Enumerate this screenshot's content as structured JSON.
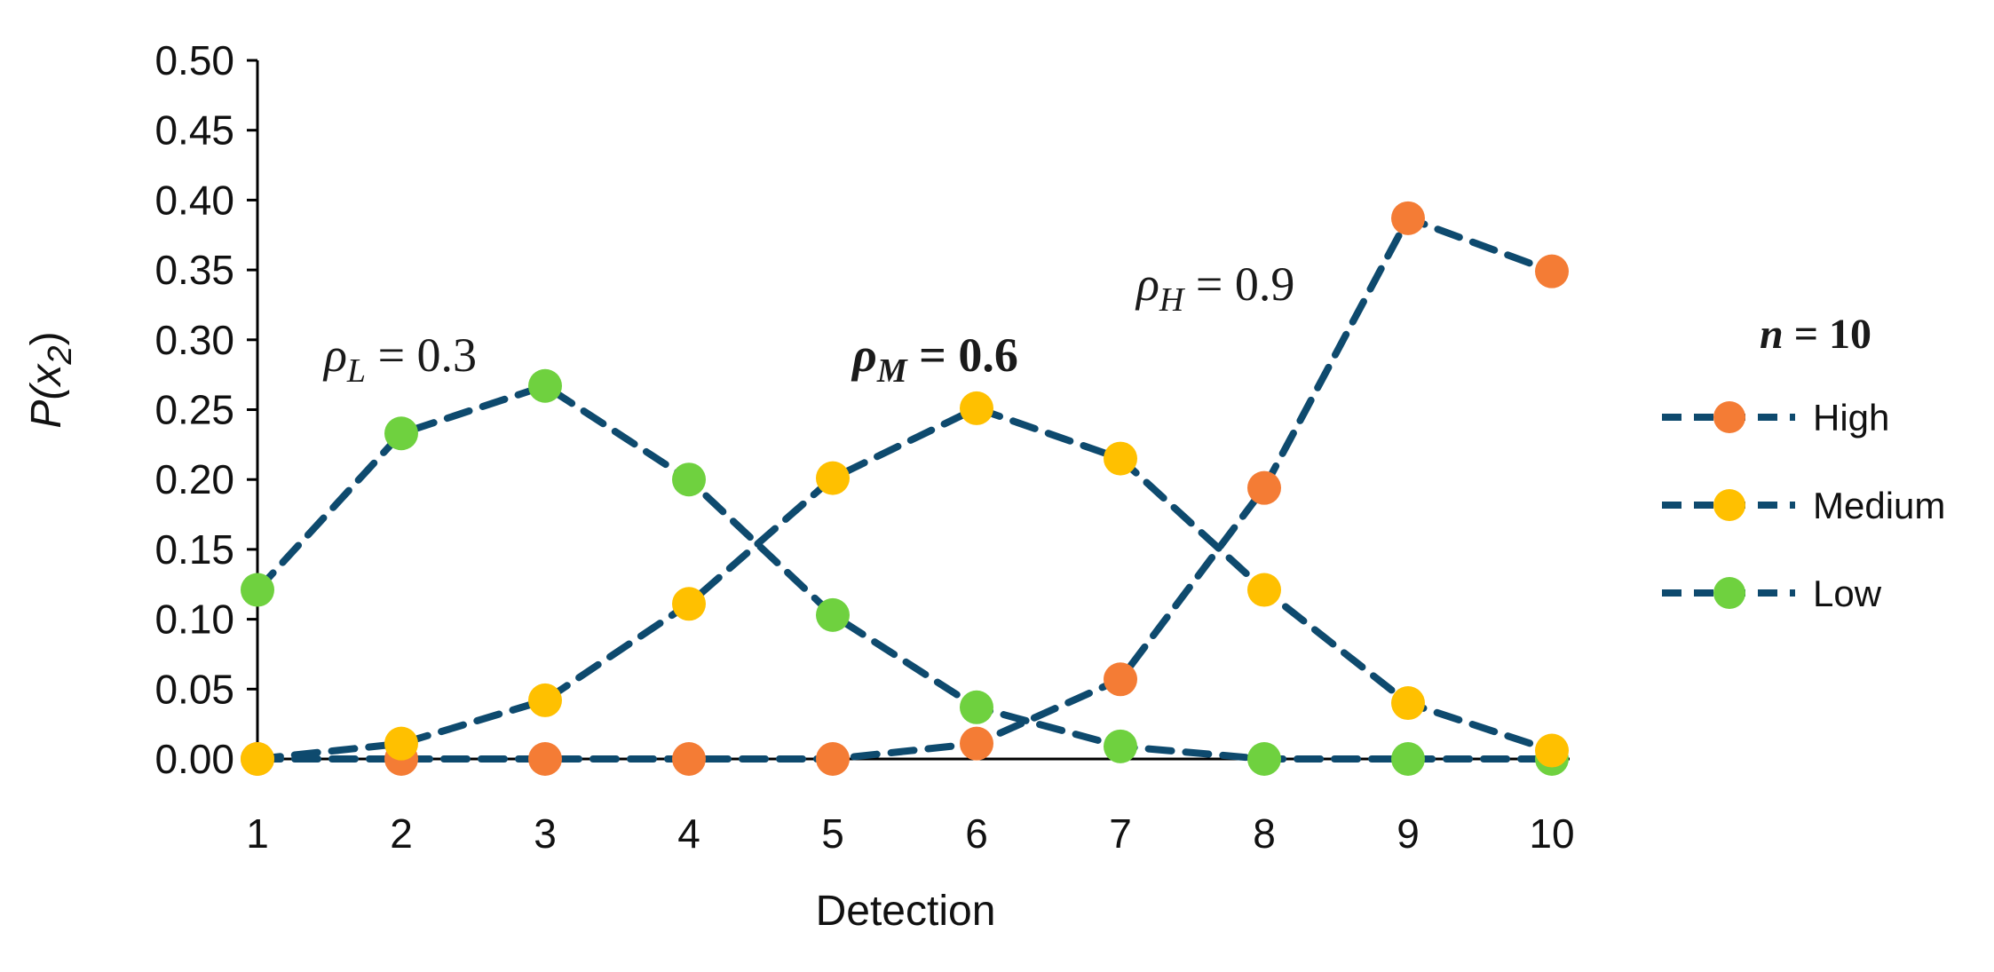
{
  "chart_data": {
    "type": "line",
    "xlabel": "Detection",
    "ylabel": "P(x2)",
    "ylabel_parts": {
      "main": "P(x",
      "sub": "2",
      "close": ")"
    },
    "x": [
      1,
      2,
      3,
      4,
      5,
      6,
      7,
      8,
      9,
      10
    ],
    "x_ticks": [
      "1",
      "2",
      "3",
      "4",
      "5",
      "6",
      "7",
      "8",
      "9",
      "10"
    ],
    "ylim": [
      0,
      0.5
    ],
    "y_ticks": [
      "0.00",
      "0.05",
      "0.10",
      "0.15",
      "0.20",
      "0.25",
      "0.30",
      "0.35",
      "0.40",
      "0.45",
      "0.50"
    ],
    "grid": false,
    "legend": {
      "title": "n = 10",
      "title_parts": {
        "var": "n",
        "rest": " = 10"
      },
      "placement": "right"
    },
    "line_color": "#0e4a6e",
    "line_style": "dashed",
    "series": [
      {
        "name": "High",
        "color": "#f47c35",
        "values": [
          0.0,
          0.0,
          0.0,
          0.0,
          0.0,
          0.011,
          0.057,
          0.194,
          0.387,
          0.349
        ]
      },
      {
        "name": "Medium",
        "color": "#ffc000",
        "values": [
          0.0,
          0.011,
          0.042,
          0.111,
          0.201,
          0.251,
          0.215,
          0.121,
          0.04,
          0.006
        ]
      },
      {
        "name": "Low",
        "color": "#6fd13f",
        "values": [
          0.121,
          0.233,
          0.267,
          0.2,
          0.103,
          0.037,
          0.009,
          0.0,
          0.0,
          0.0
        ]
      }
    ],
    "annotations": [
      {
        "text": "ρL = 0.3",
        "symbol": "ρ",
        "sub": "L",
        "rest": " = 0.3",
        "bold": false
      },
      {
        "text": "ρM = 0.6",
        "symbol": "ρ",
        "sub": "M",
        "rest": " = 0.6",
        "bold": true
      },
      {
        "text": "ρH = 0.9",
        "symbol": "ρ",
        "sub": "H",
        "rest": " = 0.9",
        "bold": false
      }
    ]
  }
}
